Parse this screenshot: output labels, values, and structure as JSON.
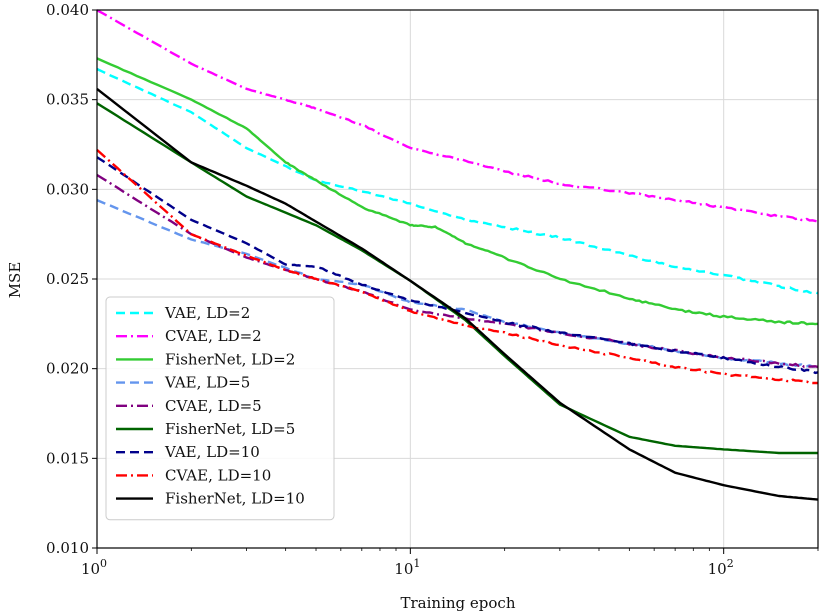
{
  "chart_data": {
    "type": "line",
    "title": "",
    "xlabel": "Training epoch",
    "ylabel": "MSE",
    "xscale": "log",
    "xlim": [
      1,
      200
    ],
    "ylim": [
      0.01,
      0.04
    ],
    "xticks": [
      {
        "value": 1,
        "base": "10",
        "exp": "0"
      },
      {
        "value": 10,
        "base": "10",
        "exp": "1"
      },
      {
        "value": 100,
        "base": "10",
        "exp": "2"
      }
    ],
    "yticks": [
      {
        "value": 0.01,
        "label": "0.010"
      },
      {
        "value": 0.015,
        "label": "0.015"
      },
      {
        "value": 0.02,
        "label": "0.020"
      },
      {
        "value": 0.025,
        "label": "0.025"
      },
      {
        "value": 0.03,
        "label": "0.030"
      },
      {
        "value": 0.035,
        "label": "0.035"
      },
      {
        "value": 0.04,
        "label": "0.040"
      }
    ],
    "grid": true,
    "legend_position": "lower left",
    "series": [
      {
        "name": "VAE, LD=2",
        "color": "#00ffff",
        "dash": "dashed",
        "x": [
          1,
          2,
          3,
          5,
          7,
          10,
          15,
          20,
          30,
          50,
          70,
          100,
          150,
          200
        ],
        "y": [
          0.0367,
          0.0343,
          0.0323,
          0.0305,
          0.0299,
          0.0292,
          0.0283,
          0.0279,
          0.0273,
          0.0263,
          0.0257,
          0.0252,
          0.0246,
          0.0242
        ]
      },
      {
        "name": "CVAE, LD=2",
        "color": "#ff00ff",
        "dash": "dashdot",
        "x": [
          1,
          2,
          3,
          4,
          5,
          7,
          10,
          15,
          20,
          30,
          50,
          70,
          100,
          150,
          200
        ],
        "y": [
          0.04,
          0.037,
          0.0356,
          0.035,
          0.0345,
          0.0336,
          0.0323,
          0.0316,
          0.031,
          0.0303,
          0.0298,
          0.0294,
          0.029,
          0.0285,
          0.0282
        ]
      },
      {
        "name": "FisherNet, LD=2",
        "color": "#33cc33",
        "dash": "solid",
        "x": [
          1,
          2,
          3,
          4,
          5,
          7,
          10,
          12,
          15,
          20,
          30,
          50,
          70,
          100,
          150,
          200
        ],
        "y": [
          0.0373,
          0.035,
          0.0334,
          0.0315,
          0.0305,
          0.029,
          0.028,
          0.0279,
          0.027,
          0.0262,
          0.025,
          0.0239,
          0.0233,
          0.0229,
          0.0226,
          0.0225
        ]
      },
      {
        "name": "VAE, LD=5",
        "color": "#6495ed",
        "dash": "dashed",
        "x": [
          1,
          2,
          3,
          5,
          7,
          10,
          15,
          20,
          30,
          50,
          70,
          100,
          150,
          200
        ],
        "y": [
          0.0294,
          0.0272,
          0.0264,
          0.025,
          0.0247,
          0.0237,
          0.0233,
          0.0226,
          0.022,
          0.0214,
          0.021,
          0.0206,
          0.0203,
          0.0201
        ]
      },
      {
        "name": "CVAE, LD=5",
        "color": "#800080",
        "dash": "dashdot",
        "x": [
          1,
          2,
          3,
          4,
          5,
          7,
          10,
          15,
          20,
          30,
          50,
          70,
          100,
          150,
          200
        ],
        "y": [
          0.0308,
          0.0275,
          0.0262,
          0.0255,
          0.025,
          0.0243,
          0.0233,
          0.0228,
          0.0225,
          0.022,
          0.0214,
          0.021,
          0.0206,
          0.0203,
          0.0201
        ]
      },
      {
        "name": "FisherNet, LD=5",
        "color": "#006400",
        "dash": "solid",
        "x": [
          1,
          2,
          3,
          5,
          7,
          10,
          15,
          20,
          30,
          50,
          70,
          100,
          150,
          200
        ],
        "y": [
          0.0348,
          0.0315,
          0.0296,
          0.028,
          0.0266,
          0.0249,
          0.0227,
          0.0207,
          0.018,
          0.0162,
          0.0157,
          0.0155,
          0.0153,
          0.0153
        ]
      },
      {
        "name": "VAE, LD=10",
        "color": "#00008b",
        "dash": "dashed",
        "x": [
          1,
          2,
          3,
          4,
          5,
          7,
          10,
          15,
          20,
          30,
          50,
          70,
          100,
          150,
          200
        ],
        "y": [
          0.0318,
          0.0283,
          0.027,
          0.0258,
          0.0257,
          0.0247,
          0.0238,
          0.0231,
          0.0226,
          0.022,
          0.0214,
          0.021,
          0.0206,
          0.0201,
          0.0198
        ]
      },
      {
        "name": "CVAE, LD=10",
        "color": "#ff0000",
        "dash": "dashdot",
        "x": [
          1,
          2,
          3,
          4,
          5,
          7,
          10,
          15,
          20,
          30,
          50,
          70,
          100,
          150,
          200
        ],
        "y": [
          0.0322,
          0.0275,
          0.0263,
          0.0255,
          0.025,
          0.0243,
          0.0232,
          0.0224,
          0.022,
          0.0213,
          0.0206,
          0.0201,
          0.0197,
          0.0194,
          0.0192
        ]
      },
      {
        "name": "FisherNet, LD=10",
        "color": "#000000",
        "dash": "solid",
        "x": [
          1,
          2,
          3,
          4,
          5,
          7,
          10,
          15,
          20,
          30,
          50,
          70,
          100,
          150,
          200
        ],
        "y": [
          0.0356,
          0.0315,
          0.0302,
          0.0292,
          0.0282,
          0.0267,
          0.0249,
          0.0228,
          0.0208,
          0.0181,
          0.0155,
          0.0142,
          0.0135,
          0.0129,
          0.0127
        ]
      }
    ]
  }
}
